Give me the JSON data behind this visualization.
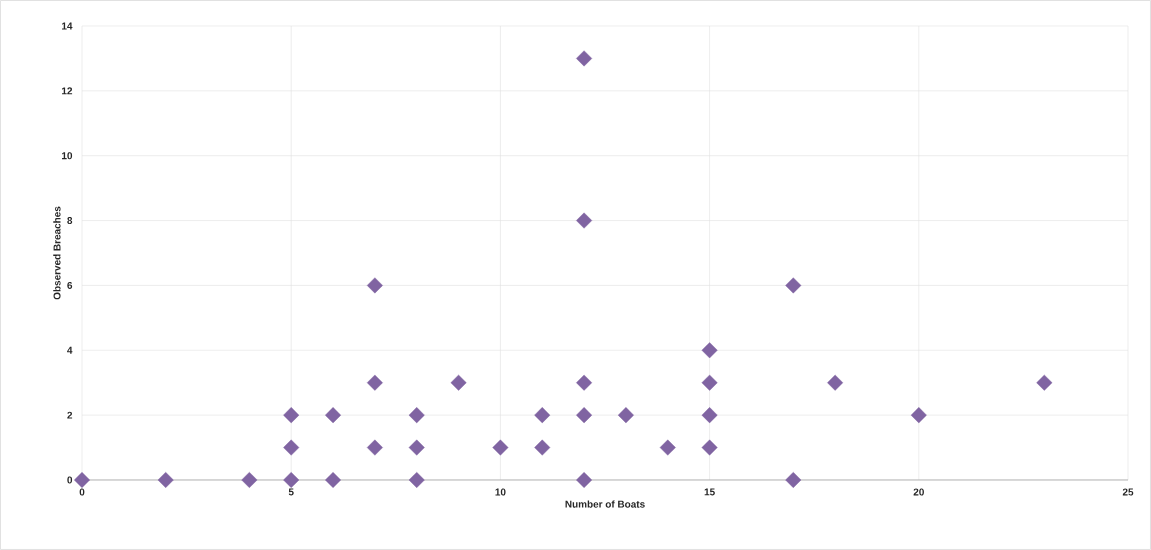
{
  "chart_data": {
    "type": "scatter",
    "xlabel": "Number of Boats",
    "ylabel": "Observed Breaches",
    "x": [
      0,
      2,
      4,
      5,
      5,
      5,
      6,
      6,
      7,
      7,
      7,
      8,
      8,
      8,
      9,
      10,
      11,
      11,
      12,
      12,
      12,
      12,
      12,
      13,
      14,
      15,
      15,
      15,
      15,
      17,
      17,
      18,
      20,
      23
    ],
    "series": [
      {
        "color": "#8064a2",
        "values": [
          0,
          0,
          0,
          0,
          1,
          2,
          0,
          2,
          1,
          3,
          6,
          0,
          1,
          2,
          3,
          1,
          1,
          2,
          0,
          2,
          3,
          8,
          13,
          2,
          1,
          1,
          2,
          3,
          4,
          0,
          6,
          3,
          2,
          3
        ]
      }
    ],
    "xlim": [
      0,
      25
    ],
    "ylim": [
      0,
      14
    ],
    "xticks": [
      0,
      5,
      10,
      15,
      20,
      25
    ],
    "yticks": [
      0,
      2,
      4,
      6,
      8,
      10,
      12,
      14
    ],
    "grid": true,
    "marker": "diamond"
  }
}
